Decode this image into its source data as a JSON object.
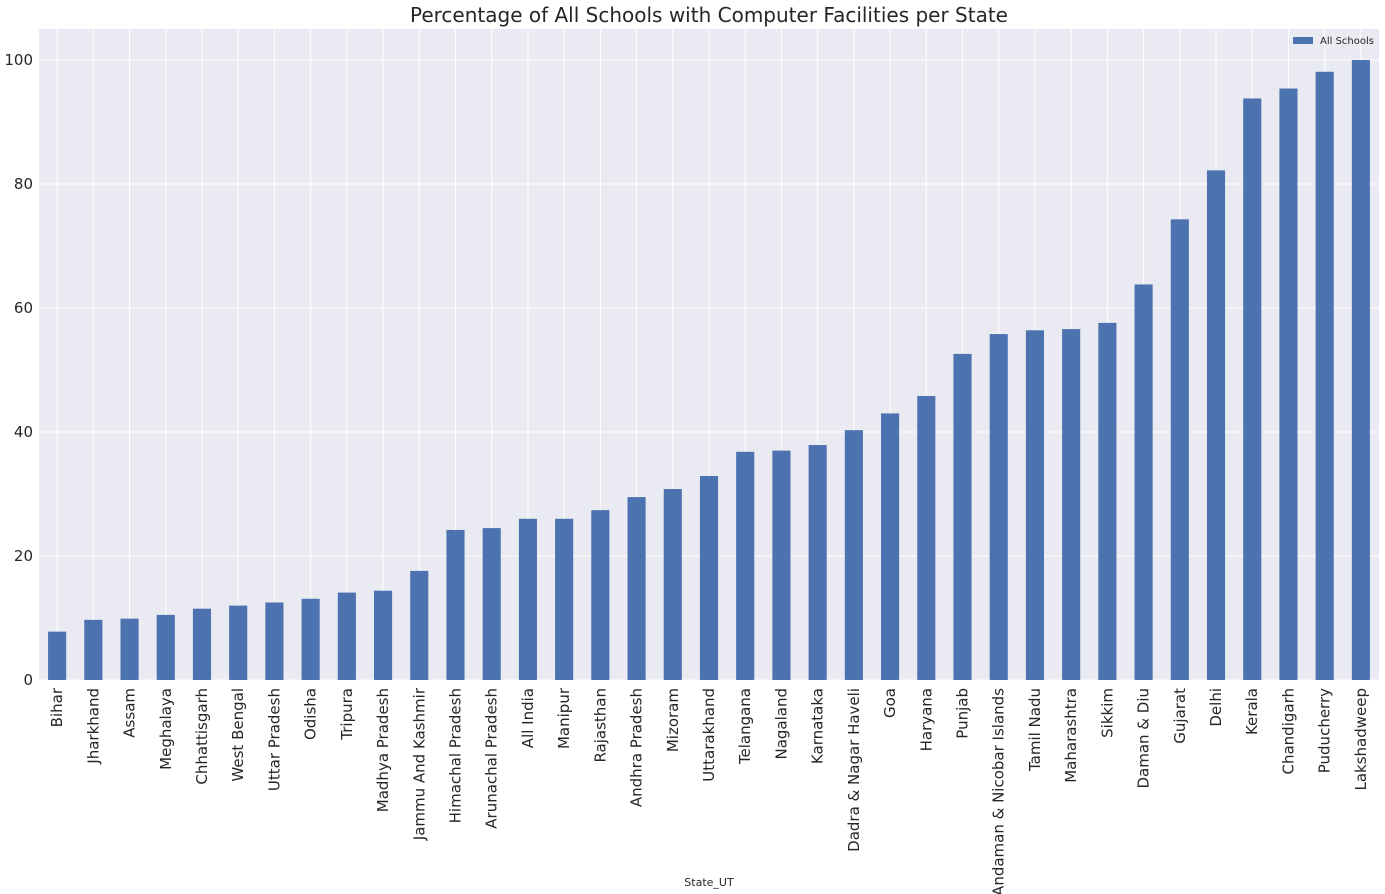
{
  "chart_data": {
    "type": "bar",
    "title": "Percentage of All Schools with Computer Facilities per State",
    "xlabel": "State_UT",
    "ylabel": "",
    "ylim": [
      0,
      105
    ],
    "yticks": [
      0,
      20,
      40,
      60,
      80,
      100
    ],
    "grid": true,
    "legend_position": "top-right",
    "bar_color": "#4c72b0",
    "background_color": "#eaeaf2",
    "categories": [
      "Bihar",
      "Jharkhand",
      "Assam",
      "Meghalaya",
      "Chhattisgarh",
      "West Bengal",
      "Uttar Pradesh",
      "Odisha",
      "Tripura",
      "Madhya Pradesh",
      "Jammu And Kashmir",
      "Himachal Pradesh",
      "Arunachal Pradesh",
      "All India",
      "Manipur",
      "Rajasthan",
      "Andhra Pradesh",
      "Mizoram",
      "Uttarakhand",
      "Telangana",
      "Nagaland",
      "Karnataka",
      "Dadra & Nagar Haveli",
      "Goa",
      "Haryana",
      "Punjab",
      "Andaman & Nicobar Islands",
      "Tamil Nadu",
      "Maharashtra",
      "Sikkim",
      "Daman & Diu",
      "Gujarat",
      "Delhi",
      "Kerala",
      "Chandigarh",
      "Puducherry",
      "Lakshadweep"
    ],
    "series": [
      {
        "name": "All Schools",
        "values": [
          7.8,
          9.7,
          9.9,
          10.5,
          11.5,
          12.0,
          12.5,
          13.1,
          14.1,
          14.4,
          17.6,
          24.2,
          24.5,
          26.0,
          26.0,
          27.4,
          29.5,
          30.8,
          32.9,
          36.8,
          37.0,
          37.9,
          40.3,
          43.0,
          45.8,
          52.6,
          55.8,
          56.4,
          56.6,
          57.6,
          63.8,
          74.3,
          82.2,
          93.8,
          95.4,
          98.1,
          100.0
        ]
      }
    ]
  }
}
